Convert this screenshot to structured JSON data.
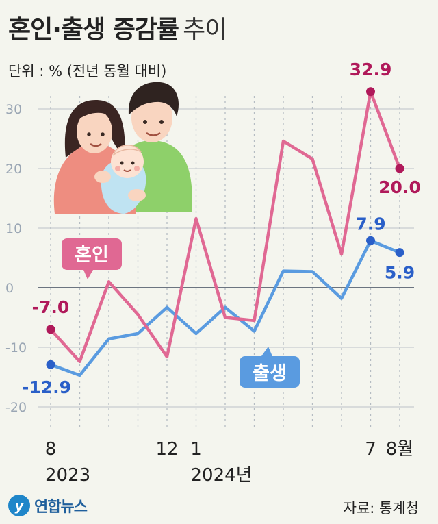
{
  "header": {
    "title_bold": "혼인·출생 증감률",
    "title_light": "추이",
    "unit": "단위 : % (전년 동월 대비)"
  },
  "footer": {
    "logo_mark": "y",
    "logo_name": "연합뉴스",
    "source": "자료: 통계청"
  },
  "colors": {
    "marriage": "#e06893",
    "birth": "#5a9be0",
    "marriage_label": "#b0195a",
    "birth_label": "#2a5fc8"
  },
  "chart_data": {
    "type": "line",
    "ylim": [
      -20,
      35
    ],
    "yticks": [
      -20,
      -10,
      0,
      10,
      20,
      30
    ],
    "x": [
      "2023-08",
      "2023-09",
      "2023-10",
      "2023-11",
      "2023-12",
      "2024-01",
      "2024-02",
      "2024-03",
      "2024-04",
      "2024-05",
      "2024-06",
      "2024-07",
      "2024-08"
    ],
    "xtick_labels": [
      {
        "x": "2023-08",
        "text": "8"
      },
      {
        "x": "2023-12",
        "text": "12"
      },
      {
        "x": "2024-01",
        "text": "1"
      },
      {
        "x": "2024-07",
        "text": "7"
      },
      {
        "x": "2024-08",
        "text": "8월"
      }
    ],
    "year_labels": [
      {
        "x": "2023-08",
        "text": "2023"
      },
      {
        "x": "2024-01",
        "text": "2024년"
      }
    ],
    "series": [
      {
        "name": "혼인",
        "values": [
          -7.0,
          -12.4,
          1.0,
          -4.5,
          -11.6,
          11.6,
          -5.0,
          -5.5,
          24.6,
          21.6,
          5.6,
          32.9,
          20.0
        ]
      },
      {
        "name": "출생",
        "values": [
          -12.9,
          -14.7,
          -8.6,
          -7.7,
          -3.3,
          -7.7,
          -3.3,
          -7.3,
          2.8,
          2.7,
          -1.8,
          7.9,
          5.9
        ]
      }
    ],
    "data_labels": [
      {
        "series": 0,
        "index": 0,
        "text": "-7.0"
      },
      {
        "series": 0,
        "index": 11,
        "text": "32.9"
      },
      {
        "series": 0,
        "index": 12,
        "text": "20.0"
      },
      {
        "series": 1,
        "index": 0,
        "text": "-12.9"
      },
      {
        "series": 1,
        "index": 11,
        "text": "7.9"
      },
      {
        "series": 1,
        "index": 12,
        "text": "5.9"
      }
    ],
    "grid": true
  }
}
